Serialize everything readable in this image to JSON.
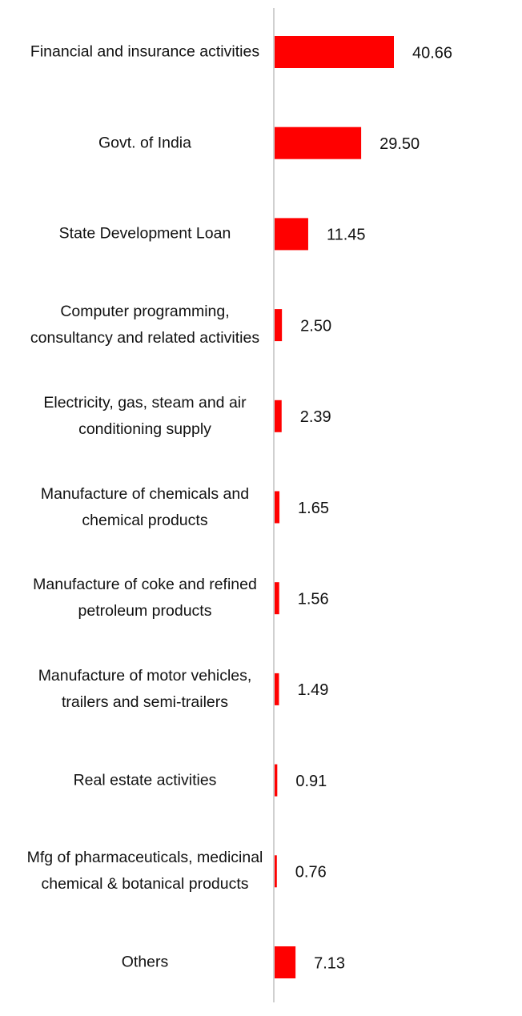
{
  "chart_data": {
    "type": "bar",
    "orientation": "horizontal",
    "categories": [
      "Financial and insurance activities",
      "Govt. of India",
      "State Development Loan",
      "Computer programming, consultancy and related activities",
      "Electricity, gas, steam and air conditioning supply",
      "Manufacture of chemicals and chemical products",
      "Manufacture of coke and refined petroleum products",
      "Manufacture of motor vehicles, trailers and semi-trailers",
      "Real estate activities",
      "Mfg of pharmaceuticals, medicinal chemical & botanical products",
      "Others"
    ],
    "values": [
      40.66,
      29.5,
      11.45,
      2.5,
      2.39,
      1.65,
      1.56,
      1.49,
      0.91,
      0.76,
      7.13
    ],
    "value_labels": [
      "40.66",
      "29.50",
      "11.45",
      "2.50",
      "2.39",
      "1.65",
      "1.56",
      "1.49",
      "0.91",
      "0.76",
      "7.13"
    ],
    "color": "#ff0000"
  }
}
